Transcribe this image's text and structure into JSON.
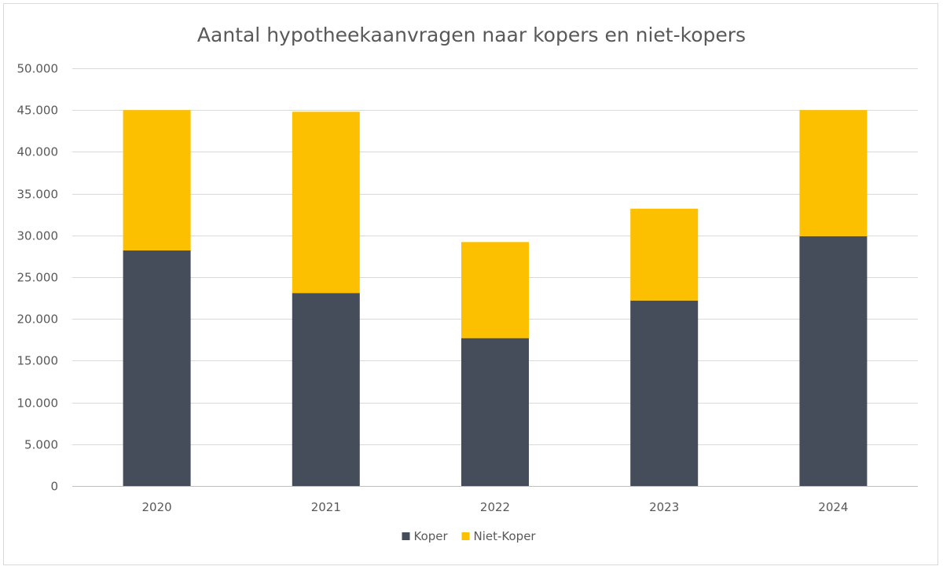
{
  "chart_data": {
    "type": "bar",
    "stacked": true,
    "title": "Aantal hypotheekaanvragen  naar kopers en niet-kopers",
    "xlabel": "",
    "ylabel": "",
    "categories": [
      "2020",
      "2021",
      "2022",
      "2023",
      "2024"
    ],
    "series": [
      {
        "name": "Koper",
        "color": "#444d59",
        "values": [
          28200,
          23100,
          17700,
          22200,
          29900
        ]
      },
      {
        "name": "Niet-Koper",
        "color": "#fcc000",
        "values": [
          16800,
          21700,
          11500,
          11000,
          15100
        ]
      }
    ],
    "ylim": [
      0,
      50000
    ],
    "y_ticks": [
      0,
      5000,
      10000,
      15000,
      20000,
      25000,
      30000,
      35000,
      40000,
      45000,
      50000
    ],
    "y_tick_labels": [
      "0",
      "5.000",
      "10.000",
      "15.000",
      "20.000",
      "25.000",
      "30.000",
      "35.000",
      "40.000",
      "45.000",
      "50.000"
    ],
    "grid": true,
    "legend_position": "bottom"
  }
}
